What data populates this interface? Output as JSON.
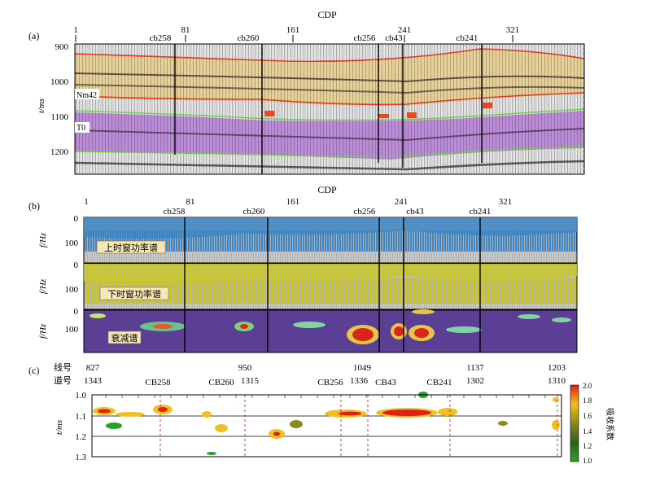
{
  "panel_a": {
    "label": "(a)",
    "top_axis_title": "CDP",
    "cdp_ticks": [
      "1",
      "81",
      "161",
      "241",
      "321"
    ],
    "wells": [
      "cb258",
      "cb260",
      "cb256",
      "cb43",
      "cb241"
    ],
    "y_ticks": [
      "900",
      "1000",
      "1100",
      "1200"
    ],
    "y_label": "t/ms",
    "horizons": [
      "Nm42",
      "T0"
    ],
    "colors": {
      "upper_zone": "#e8d29a",
      "lower_zone": "#b98ad6",
      "top_horizon": "#e23a2a",
      "green_horizon": "#6ccf4a"
    }
  },
  "panel_b": {
    "label": "(b)",
    "top_axis_title": "CDP",
    "cdp_ticks": [
      "1",
      "81",
      "161",
      "241",
      "321"
    ],
    "wells": [
      "cb258",
      "cb260",
      "cb256",
      "cb43",
      "cb241"
    ],
    "y_label": "f/Hz",
    "subpanels": [
      {
        "y_ticks": [
          "0",
          "100"
        ],
        "caption": "上时窗功率谱",
        "color": "#3d86c6"
      },
      {
        "y_ticks": [
          "0",
          "100"
        ],
        "caption": "下时窗功率谱",
        "color": "#c9c72a"
      },
      {
        "y_ticks": [
          "0",
          "100"
        ],
        "caption": "衰减谱",
        "color": "#5a3f94"
      }
    ]
  },
  "panel_c": {
    "label": "(c)",
    "line_label": "线号",
    "trace_label": "道号",
    "line_numbers": [
      "827",
      "950",
      "1049",
      "1137",
      "1203"
    ],
    "trace_numbers": [
      "1343",
      "1315",
      "1336",
      "1302",
      "1310"
    ],
    "wells": [
      "CB258",
      "CB260",
      "CB256",
      "CB43",
      "CB241"
    ],
    "y_ticks": [
      "1.0",
      "1.1",
      "1.2",
      "1.3"
    ],
    "y_label": "t/ms",
    "colorbar": {
      "title": "吸收系数",
      "ticks": [
        "2.0",
        "1.8",
        "1.6",
        "1.4",
        "1.2",
        "1.0"
      ]
    }
  }
}
